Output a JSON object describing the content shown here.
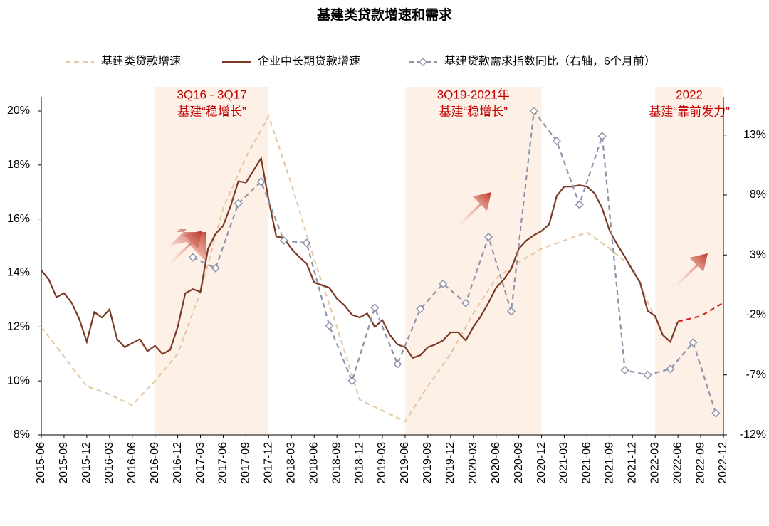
{
  "chart_data": {
    "type": "line",
    "title": "基建类贷款增速和需求",
    "xlim": [
      "2015-06",
      "2022-12"
    ],
    "xticks": [
      "2015-06",
      "2015-09",
      "2015-12",
      "2016-03",
      "2016-06",
      "2016-09",
      "2016-12",
      "2017-03",
      "2017-06",
      "2017-09",
      "2017-12",
      "2018-03",
      "2018-06",
      "2018-09",
      "2018-12",
      "2019-03",
      "2019-06",
      "2019-09",
      "2019-12",
      "2020-03",
      "2020-06",
      "2020-09",
      "2020-12",
      "2021-03",
      "2021-06",
      "2021-09",
      "2021-12",
      "2022-03",
      "2022-06",
      "2022-09",
      "2022-12"
    ],
    "ylim": [
      8,
      20
    ],
    "yticks": [
      {
        "value": 8,
        "label": "8%"
      },
      {
        "value": 10,
        "label": "10%"
      },
      {
        "value": 12,
        "label": "12%"
      },
      {
        "value": 14,
        "label": "14%"
      },
      {
        "value": 16,
        "label": "16%"
      },
      {
        "value": 18,
        "label": "18%"
      },
      {
        "value": 20,
        "label": "20%"
      }
    ],
    "y2lim": [
      -12,
      15
    ],
    "y2ticks": [
      {
        "value": -12,
        "label": "-12%"
      },
      {
        "value": -7,
        "label": "-7%"
      },
      {
        "value": -2,
        "label": "-2%"
      },
      {
        "value": 3,
        "label": "3%"
      },
      {
        "value": 8,
        "label": "8%"
      },
      {
        "value": 13,
        "label": "13%"
      }
    ],
    "bands": [
      {
        "from": "2016-09",
        "to": "2017-12",
        "label": [
          "3Q16 - 3Q17",
          "基建“稳增长”"
        ]
      },
      {
        "from": "2019-06",
        "to": "2020-12",
        "label": [
          "3Q19-2021年",
          "基建“稳增长”"
        ]
      },
      {
        "from": "2022-03",
        "to": "2022-12",
        "label": [
          "2022",
          "基建“靠前发力”"
        ]
      }
    ],
    "series": [
      {
        "name": "基建类贷款增速",
        "color": "#e6c8a6",
        "dash": true,
        "x": [
          "2015-06",
          "2015-09",
          "2015-12",
          "2016-03",
          "2016-06",
          "2016-09",
          "2016-12",
          "2017-03",
          "2017-06",
          "2017-09",
          "2017-12",
          "2018-03",
          "2018-06",
          "2018-09",
          "2018-12",
          "2019-03",
          "2019-06",
          "2019-09",
          "2019-12",
          "2020-03",
          "2020-06",
          "2020-09",
          "2020-12",
          "2021-03",
          "2021-06",
          "2021-09",
          "2021-12",
          "2022-03"
        ],
        "values": [
          12.0,
          10.9,
          9.8,
          9.5,
          9.1,
          10.0,
          11.0,
          13.3,
          16.4,
          18.3,
          19.8,
          17.3,
          14.5,
          12.0,
          9.3,
          8.9,
          8.5,
          9.8,
          11.0,
          12.5,
          13.8,
          14.4,
          14.9,
          15.2,
          15.5,
          14.9,
          14.2,
          12.3
        ]
      },
      {
        "name": "企业中长期贷款增速",
        "color": "#7b3a26",
        "x": [
          "2015-06",
          "2015-07",
          "2015-08",
          "2015-09",
          "2015-10",
          "2015-11",
          "2015-12",
          "2016-01",
          "2016-02",
          "2016-03",
          "2016-04",
          "2016-05",
          "2016-06",
          "2016-07",
          "2016-08",
          "2016-09",
          "2016-10",
          "2016-11",
          "2016-12",
          "2017-01",
          "2017-02",
          "2017-03",
          "2017-04",
          "2017-05",
          "2017-06",
          "2017-07",
          "2017-08",
          "2017-09",
          "2017-10",
          "2017-11",
          "2017-12",
          "2018-01",
          "2018-02",
          "2018-03",
          "2018-04",
          "2018-05",
          "2018-06",
          "2018-07",
          "2018-08",
          "2018-09",
          "2018-10",
          "2018-11",
          "2018-12",
          "2019-01",
          "2019-02",
          "2019-03",
          "2019-04",
          "2019-05",
          "2019-06",
          "2019-07",
          "2019-08",
          "2019-09",
          "2019-10",
          "2019-11",
          "2019-12",
          "2020-01",
          "2020-02",
          "2020-03",
          "2020-04",
          "2020-05",
          "2020-06",
          "2020-07",
          "2020-08",
          "2020-09",
          "2020-10",
          "2020-11",
          "2020-12",
          "2021-01",
          "2021-02",
          "2021-03",
          "2021-04",
          "2021-05",
          "2021-06",
          "2021-07",
          "2021-08",
          "2021-09",
          "2021-10",
          "2021-11",
          "2021-12",
          "2022-01",
          "2022-02",
          "2022-03",
          "2022-04",
          "2022-05",
          "2022-06"
        ],
        "values": [
          14.1,
          13.75,
          13.1,
          13.25,
          12.9,
          12.3,
          11.45,
          12.55,
          12.35,
          12.65,
          11.55,
          11.25,
          11.4,
          11.55,
          11.1,
          11.3,
          11.0,
          11.15,
          12.0,
          13.25,
          13.4,
          13.3,
          14.9,
          15.45,
          15.75,
          16.5,
          17.4,
          17.35,
          17.8,
          18.25,
          16.7,
          15.35,
          15.3,
          14.9,
          14.6,
          14.35,
          13.65,
          13.55,
          13.45,
          13.05,
          12.8,
          12.45,
          12.35,
          12.5,
          12.0,
          12.25,
          11.7,
          11.35,
          11.25,
          10.85,
          10.95,
          11.25,
          11.35,
          11.5,
          11.8,
          11.8,
          11.5,
          12.0,
          12.4,
          12.9,
          13.45,
          13.75,
          14.15,
          14.9,
          15.2,
          15.4,
          15.55,
          15.8,
          16.85,
          17.2,
          17.2,
          17.25,
          17.2,
          16.95,
          16.4,
          15.55,
          15.05,
          14.6,
          14.1,
          13.65,
          12.6,
          12.4,
          11.7,
          11.45,
          12.2
        ]
      },
      {
        "color": "#d62728",
        "dash": true,
        "x": [
          "2022-06",
          "2022-09",
          "2022-12"
        ],
        "values": [
          12.2,
          12.4,
          12.9
        ]
      },
      {
        "name": "基建贷款需求指数同比（右轴，6个月前）",
        "color": "#8e94aa",
        "dash": true,
        "marker": "diamond",
        "axis": "y2",
        "x": [
          "2017-02",
          "2017-05",
          "2017-08",
          "2017-11",
          "2018-02",
          "2018-05",
          "2018-08",
          "2018-11",
          "2019-02",
          "2019-05",
          "2019-08",
          "2019-11",
          "2020-02",
          "2020-05",
          "2020-08",
          "2020-11",
          "2021-02",
          "2021-05",
          "2021-08",
          "2021-11",
          "2022-02",
          "2022-05",
          "2022-08",
          "2022-11"
        ],
        "values": [
          2.8,
          1.9,
          7.3,
          9.1,
          4.2,
          4.0,
          -2.9,
          -7.5,
          -1.4,
          -6.1,
          -1.5,
          0.6,
          -1.0,
          4.5,
          -1.7,
          15.0,
          12.5,
          7.2,
          12.9,
          -6.6,
          -7.0,
          -6.5,
          -4.3,
          -10.2
        ]
      }
    ]
  }
}
